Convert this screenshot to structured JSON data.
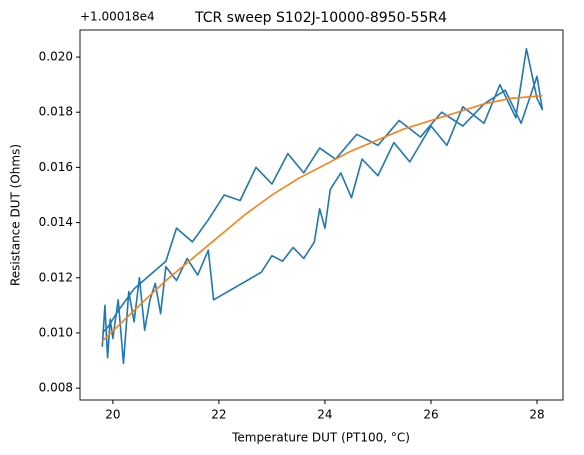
{
  "chart_data": {
    "type": "line",
    "title": "TCR sweep S102J-10000-8950-55R4",
    "x_label": "Temperature DUT (PT100, °C)",
    "y_label": "Resistance DUT (Ohms)",
    "y_offset_label": "+1.00018e4",
    "xlim": [
      19.38,
      28.49
    ],
    "ylim": [
      0.00757,
      0.02098
    ],
    "xticks": [
      20,
      22,
      24,
      26,
      28
    ],
    "yticks": [
      0.008,
      {
        "value": 0.01,
        "label": "0.010"
      },
      0.012,
      0.014,
      0.016,
      0.018,
      {
        "value": 0.02,
        "label": "0.020"
      }
    ],
    "series": [
      {
        "color": "#1f77b4",
        "x": [
          19.8,
          19.85,
          19.9,
          19.95,
          20.0,
          20.1,
          20.2,
          20.3,
          20.4,
          20.5,
          20.6,
          20.7,
          20.8,
          20.9,
          21.0,
          21.2,
          21.4,
          21.6,
          21.8,
          21.9,
          22.8,
          23.0,
          23.2,
          23.4,
          23.6,
          23.8,
          23.9,
          24.0,
          24.1,
          24.3,
          24.5,
          24.7,
          25.0,
          25.3,
          25.6,
          26.0,
          26.3,
          26.6,
          27.0,
          27.3,
          27.6,
          27.8,
          28.0,
          28.1,
          28.0,
          27.7,
          27.4,
          27.0,
          26.6,
          26.2,
          25.8,
          25.4,
          25.0,
          24.6,
          24.2,
          23.9,
          23.6,
          23.3,
          23.0,
          22.7,
          22.4,
          22.1,
          21.8,
          21.5,
          21.2,
          21.0,
          20.7,
          20.4,
          20.1,
          19.9,
          19.8
        ],
        "values": [
          0.0095,
          0.011,
          0.0091,
          0.0105,
          0.0098,
          0.0112,
          0.0089,
          0.0115,
          0.0104,
          0.012,
          0.0101,
          0.0112,
          0.0118,
          0.0107,
          0.0124,
          0.0119,
          0.0127,
          0.0121,
          0.013,
          0.0112,
          0.0122,
          0.0128,
          0.0126,
          0.0131,
          0.0127,
          0.0133,
          0.0145,
          0.0138,
          0.0152,
          0.0158,
          0.0149,
          0.0163,
          0.0157,
          0.0169,
          0.0162,
          0.0175,
          0.0168,
          0.0182,
          0.0176,
          0.019,
          0.0178,
          0.0203,
          0.0185,
          0.0181,
          0.0193,
          0.0176,
          0.0188,
          0.0183,
          0.0175,
          0.018,
          0.0171,
          0.0177,
          0.0168,
          0.0172,
          0.0163,
          0.0167,
          0.0158,
          0.0165,
          0.0154,
          0.016,
          0.0148,
          0.015,
          0.0141,
          0.0133,
          0.0138,
          0.0126,
          0.0121,
          0.0116,
          0.0108,
          0.0102,
          0.01
        ]
      },
      {
        "color": "#ff7f0e",
        "x": [
          19.8,
          20.5,
          21.0,
          21.5,
          22.0,
          22.5,
          23.0,
          23.5,
          24.0,
          24.5,
          25.0,
          25.5,
          26.0,
          26.5,
          27.0,
          27.5,
          28.1
        ],
        "values": [
          0.0097,
          0.011,
          0.0119,
          0.0127,
          0.0135,
          0.0143,
          0.015,
          0.0156,
          0.0161,
          0.0166,
          0.017,
          0.0174,
          0.0177,
          0.018,
          0.0183,
          0.0185,
          0.0186
        ]
      }
    ]
  }
}
